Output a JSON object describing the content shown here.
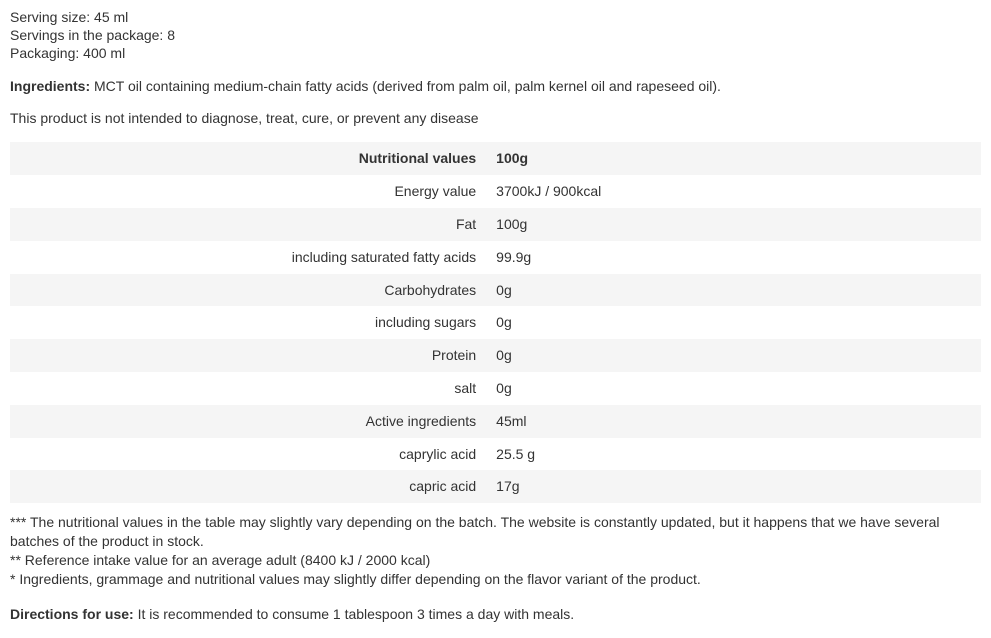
{
  "intro": {
    "serving_size": "Serving size: 45 ml",
    "servings_in_package": "Servings in the package: 8",
    "packaging": "Packaging: 400 ml"
  },
  "ingredients": {
    "label": "Ingredients:",
    "text": " MCT oil containing medium-chain fatty acids (derived from palm oil, palm kernel oil and rapeseed oil)."
  },
  "disclaimer": "This product is not intended to diagnose, treat, cure, or prevent any disease",
  "table": {
    "header_label": "Nutritional values",
    "header_value": "100g",
    "row_bg_alt": "#f5f5f5",
    "row_bg": "#ffffff",
    "text_color": "#333333",
    "fontsize": 14,
    "rows": [
      {
        "label": "Energy value",
        "value": "3700kJ / 900kcal",
        "alt": false
      },
      {
        "label": "Fat",
        "value": "100g",
        "alt": true
      },
      {
        "label": "including saturated fatty acids",
        "value": "99.9g",
        "alt": false
      },
      {
        "label": "Carbohydrates",
        "value": "0g",
        "alt": true
      },
      {
        "label": "including sugars",
        "value": "0g",
        "alt": false
      },
      {
        "label": "Protein",
        "value": "0g",
        "alt": true
      },
      {
        "label": "salt",
        "value": "0g",
        "alt": false
      },
      {
        "label": "Active ingredients",
        "value": "45ml",
        "alt": true
      },
      {
        "label": "caprylic acid",
        "value": "25.5 g",
        "alt": false
      },
      {
        "label": "capric acid",
        "value": "17g",
        "alt": true
      }
    ]
  },
  "footnotes": {
    "fn1": "*** The nutritional values in the table may slightly vary depending on the batch. The website is constantly updated, but it happens that we have several batches of the product in stock.",
    "fn2": "** Reference intake value for an average adult (8400 kJ / 2000 kcal)",
    "fn3": "* Ingredients, grammage and nutritional values may slightly differ depending on the flavor variant of the product."
  },
  "directions": {
    "label": "Directions for use:",
    "text": " It is recommended to consume 1 tablespoon 3 times a day with meals."
  }
}
